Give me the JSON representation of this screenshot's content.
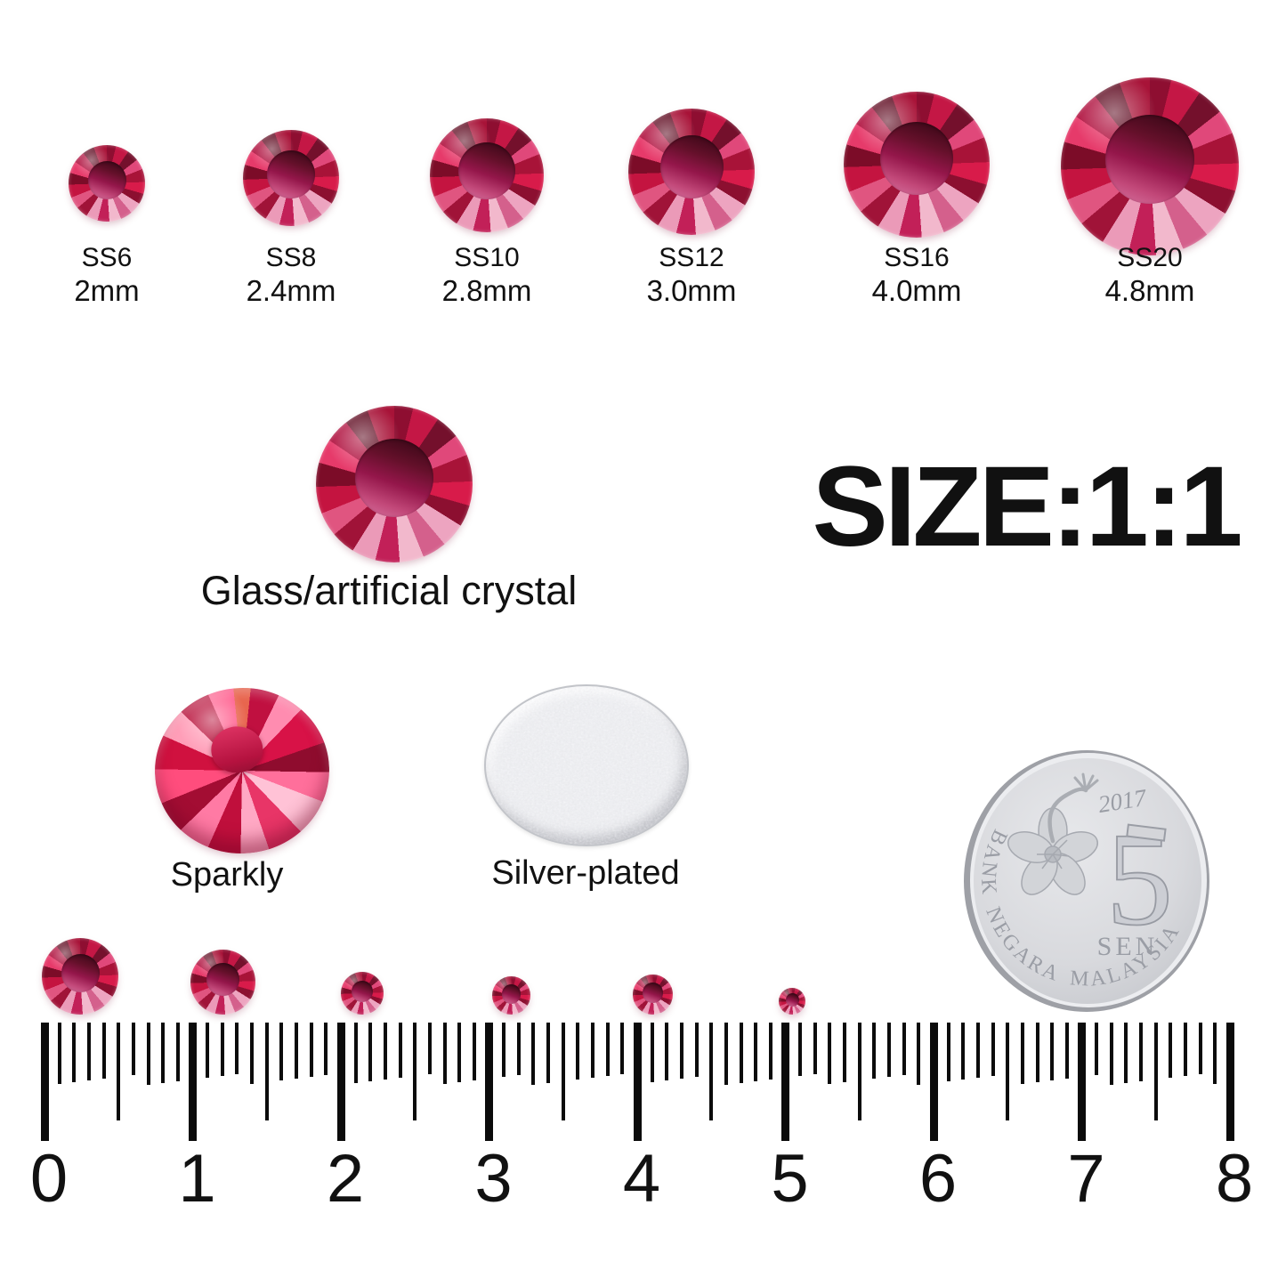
{
  "top_row": {
    "items": [
      {
        "code": "SS6",
        "size": "2mm"
      },
      {
        "code": "SS8",
        "size": "2.4mm"
      },
      {
        "code": "SS10",
        "size": "2.8mm"
      },
      {
        "code": "SS12",
        "size": "3.0mm"
      },
      {
        "code": "SS16",
        "size": "4.0mm"
      },
      {
        "code": "SS20",
        "size": "4.8mm"
      }
    ]
  },
  "material": {
    "label": "Glass/artificial crystal"
  },
  "size_note": {
    "text": "SIZE:1:1"
  },
  "features": {
    "sparkly_label": "Sparkly",
    "silver_label": "Silver-plated"
  },
  "coin": {
    "year": "2017",
    "denomination": "5",
    "unit": "SEN",
    "issuer": "BANK NEGARA MALAYSIA"
  },
  "ruler": {
    "numbers": [
      "0",
      "1",
      "2",
      "3",
      "4",
      "5",
      "6",
      "7",
      "8"
    ]
  },
  "colors": {
    "gem_primary": "#d81b4a",
    "gem_dark": "#8c0f30",
    "gem_light": "#eda4c0",
    "silver": "#ebecef",
    "text": "#111111"
  }
}
